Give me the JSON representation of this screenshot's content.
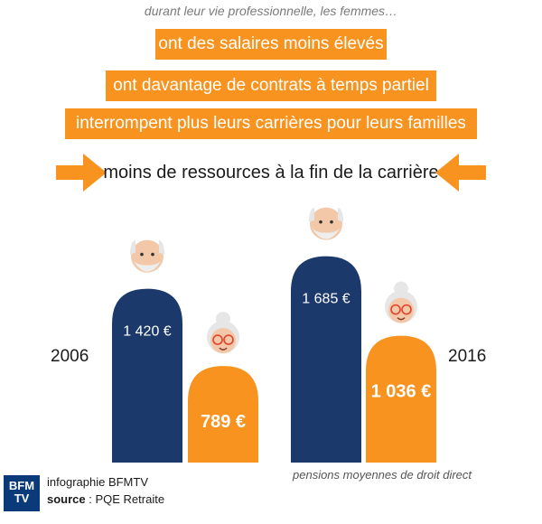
{
  "intro": "durant leur vie professionnelle, les femmes…",
  "bands": [
    "ont des salaires moins élevés",
    "ont davantage de contrats à temps partiel",
    "interrompent plus leurs carrières pour leurs familles"
  ],
  "conclusion": "moins de ressources à la fin de la carrière",
  "footnote": "pensions moyennes de droit direct",
  "logo": {
    "line1": "BFM",
    "line2": "TV"
  },
  "credits": {
    "line1": "infographie BFMTV",
    "source_label": "source",
    "source_rest": " : PQE Retraite"
  },
  "colors": {
    "men": "#1b3a6b",
    "women": "#f7931e",
    "accent": "#f7931e"
  },
  "chart_data": {
    "type": "bar",
    "categories": [
      "2006",
      "2016"
    ],
    "series": [
      {
        "values": [
          1420,
          1685
        ],
        "labels": [
          "1 420 €",
          "1 685 €"
        ],
        "color": "#1b3a6b"
      },
      {
        "values": [
          789,
          1036
        ],
        "labels": [
          "789 €",
          "1 036 €"
        ],
        "color": "#f7931e"
      }
    ],
    "unit": "€"
  }
}
